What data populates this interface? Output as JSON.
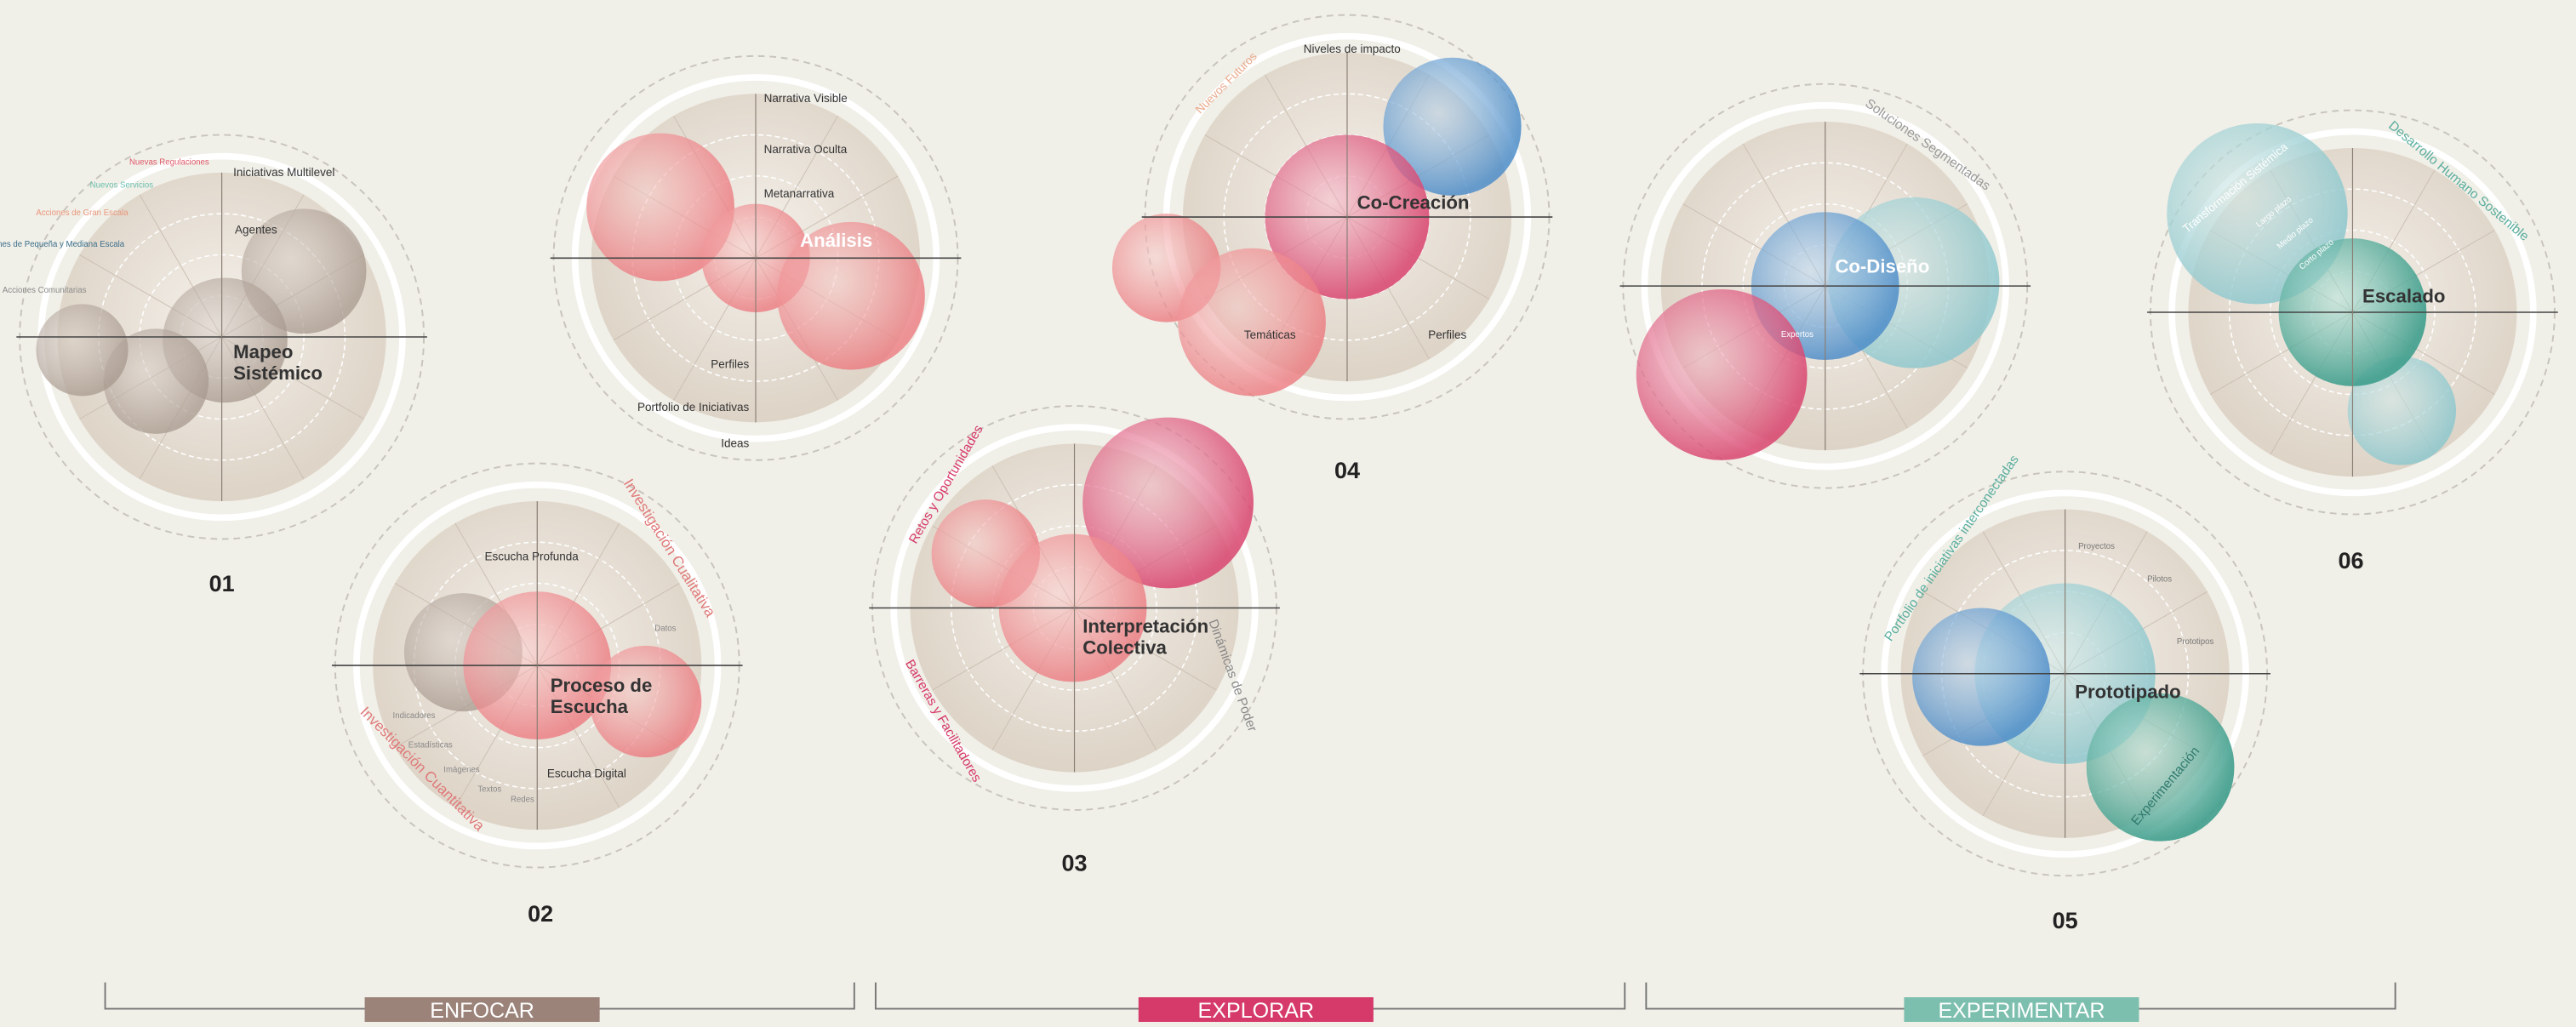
{
  "diagrams": [
    {
      "number": "01",
      "title": "Mapeo Sistémico",
      "labels": [
        "Iniciativas Multilevel",
        "Agentes",
        "Nuevas Regulaciones",
        "Nuevos Servicios",
        "Acciones de Gran Escala",
        "Acciones de Pequeña y Mediana Escala",
        "Acciones Comunitarias"
      ]
    },
    {
      "title": "Análisis",
      "labels": [
        "Narrativa Visible",
        "Narrativa Oculta",
        "Metanarrativa",
        "Perfiles",
        "Portfolio de Iniciativas",
        "Ideas"
      ]
    },
    {
      "number": "02",
      "title": "Proceso de Escucha",
      "labels": [
        "Escucha Profunda",
        "Escucha Digital",
        "Investigación Cualitativa",
        "Investigación Cuantitativa",
        "Datos",
        "Indicadores",
        "Estadísticas",
        "Imágenes",
        "Textos",
        "Redes"
      ]
    },
    {
      "number": "03",
      "title": "Interpretación Colectiva",
      "labels": [
        "Retos y Oportunidades",
        "Barreras y Facilitadores",
        "Dinámicas de Poder"
      ]
    },
    {
      "number": "04",
      "title": "Co-Creación",
      "labels": [
        "Niveles de impacto",
        "Temáticas",
        "Perfiles",
        "Nuevos Futuros"
      ]
    },
    {
      "title": "Co-Diseño",
      "labels": [
        "Soluciones Segmentadas",
        "Expertos"
      ]
    },
    {
      "number": "05",
      "title": "Prototipado",
      "labels": [
        "Proyectos",
        "Pilotos",
        "Prototipos",
        "Portfolio de iniciativas interconectadas",
        "Experimentación"
      ]
    },
    {
      "number": "06",
      "title": "Escalado",
      "labels": [
        "Desarrollo Humano Sostenible",
        "Transformación Sistémica",
        "Largo plazo",
        "Medio plazo",
        "Corto plazo"
      ]
    }
  ],
  "phases": [
    {
      "label": "ENFOCAR"
    },
    {
      "label": "EXPLORAR"
    },
    {
      "label": "EXPERIMENTAR"
    }
  ]
}
